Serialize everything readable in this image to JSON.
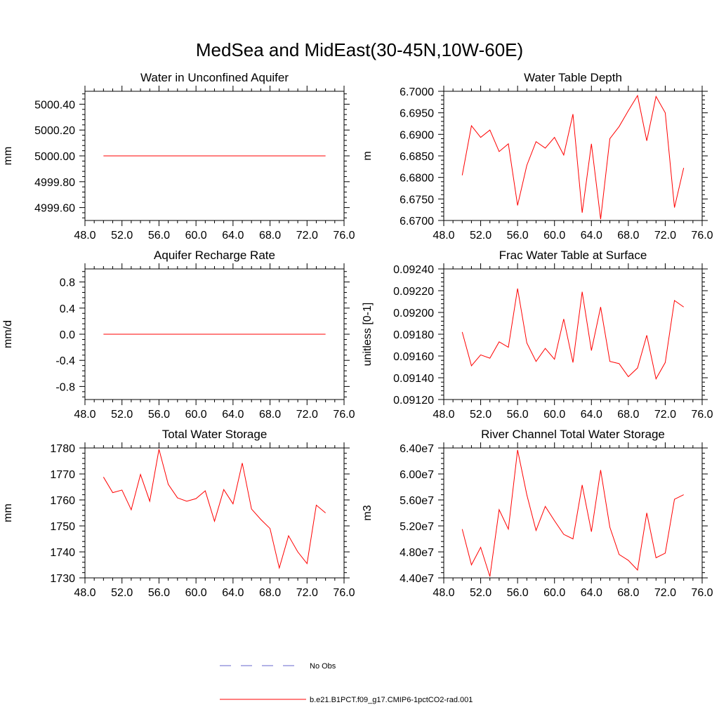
{
  "figure": {
    "title": "MedSea and MidEast(30-45N,10W-60E)"
  },
  "colors": {
    "model_line": "#ff0000",
    "obs_line": "#6666cc",
    "axis": "#000000",
    "background": "#ffffff"
  },
  "legend": {
    "items": [
      {
        "label": "No Obs",
        "style": "dashed",
        "color": "#6666cc"
      },
      {
        "label": "b.e21.B1PCT.f09_g17.CMIP6-1pctCO2-rad.001",
        "style": "solid",
        "color": "#ff0000"
      }
    ]
  },
  "chart_data": [
    {
      "type": "line",
      "title": "Water in Unconfined Aquifer",
      "xlabel": "",
      "ylabel": "mm",
      "xlim": [
        48,
        76
      ],
      "ylim": [
        4999.5,
        5000.5
      ],
      "xticks": [
        48,
        52,
        56,
        60,
        64,
        68,
        72,
        76
      ],
      "xtick_labels": [
        "48.0",
        "52.0",
        "56.0",
        "60.0",
        "64.0",
        "68.0",
        "72.0",
        "76.0"
      ],
      "yticks": [
        4999.6,
        4999.8,
        5000.0,
        5000.2,
        5000.4
      ],
      "ytick_labels": [
        "4999.60",
        "4999.80",
        "5000.00",
        "5000.20",
        "5000.40"
      ],
      "x": [
        50,
        51,
        52,
        53,
        54,
        55,
        56,
        57,
        58,
        59,
        60,
        61,
        62,
        63,
        64,
        65,
        66,
        67,
        68,
        69,
        70,
        71,
        72,
        73,
        74
      ],
      "series": [
        {
          "values": [
            5000.0,
            5000.0,
            5000.0,
            5000.0,
            5000.0,
            5000.0,
            5000.0,
            5000.0,
            5000.0,
            5000.0,
            5000.0,
            5000.0,
            5000.0,
            5000.0,
            5000.0,
            5000.0,
            5000.0,
            5000.0,
            5000.0,
            5000.0,
            5000.0,
            5000.0,
            5000.0,
            5000.0,
            5000.0
          ]
        }
      ]
    },
    {
      "type": "line",
      "title": "Water Table Depth",
      "xlabel": "",
      "ylabel": "m",
      "xlim": [
        48,
        76
      ],
      "ylim": [
        6.67,
        6.7
      ],
      "xticks": [
        48,
        52,
        56,
        60,
        64,
        68,
        72,
        76
      ],
      "xtick_labels": [
        "48.0",
        "52.0",
        "56.0",
        "60.0",
        "64.0",
        "68.0",
        "72.0",
        "76.0"
      ],
      "yticks": [
        6.67,
        6.675,
        6.68,
        6.685,
        6.69,
        6.695,
        6.7
      ],
      "ytick_labels": [
        "6.6700",
        "6.6750",
        "6.6800",
        "6.6850",
        "6.6900",
        "6.6950",
        "6.7000"
      ],
      "x": [
        50,
        51,
        52,
        53,
        54,
        55,
        56,
        57,
        58,
        59,
        60,
        61,
        62,
        63,
        64,
        65,
        66,
        67,
        68,
        69,
        70,
        71,
        72,
        73,
        74
      ],
      "series": [
        {
          "values": [
            6.6805,
            6.692,
            6.6893,
            6.691,
            6.686,
            6.6878,
            6.6735,
            6.6828,
            6.6883,
            6.6868,
            6.6893,
            6.6852,
            6.6947,
            6.6718,
            6.6878,
            6.6703,
            6.689,
            6.6918,
            6.6955,
            6.699,
            6.6885,
            6.6988,
            6.695,
            6.673,
            6.6822
          ]
        }
      ]
    },
    {
      "type": "line",
      "title": "Aquifer Recharge Rate",
      "xlabel": "",
      "ylabel": "mm/d",
      "xlim": [
        48,
        76
      ],
      "ylim": [
        -1.0,
        1.0
      ],
      "xticks": [
        48,
        52,
        56,
        60,
        64,
        68,
        72,
        76
      ],
      "xtick_labels": [
        "48.0",
        "52.0",
        "56.0",
        "60.0",
        "64.0",
        "68.0",
        "72.0",
        "76.0"
      ],
      "yticks": [
        -0.8,
        -0.4,
        0.0,
        0.4,
        0.8
      ],
      "ytick_labels": [
        "-0.8",
        "-0.4",
        "0.0",
        "0.4",
        "0.8"
      ],
      "x": [
        50,
        51,
        52,
        53,
        54,
        55,
        56,
        57,
        58,
        59,
        60,
        61,
        62,
        63,
        64,
        65,
        66,
        67,
        68,
        69,
        70,
        71,
        72,
        73,
        74
      ],
      "series": [
        {
          "values": [
            0,
            0,
            0,
            0,
            0,
            0,
            0,
            0,
            0,
            0,
            0,
            0,
            0,
            0,
            0,
            0,
            0,
            0,
            0,
            0,
            0,
            0,
            0,
            0,
            0
          ]
        }
      ]
    },
    {
      "type": "line",
      "title": "Frac Water Table at Surface",
      "xlabel": "",
      "ylabel": "unitless [0-1]",
      "xlim": [
        48,
        76
      ],
      "ylim": [
        0.0912,
        0.0924
      ],
      "xticks": [
        48,
        52,
        56,
        60,
        64,
        68,
        72,
        76
      ],
      "xtick_labels": [
        "48.0",
        "52.0",
        "56.0",
        "60.0",
        "64.0",
        "68.0",
        "72.0",
        "76.0"
      ],
      "yticks": [
        0.0912,
        0.0914,
        0.0916,
        0.0918,
        0.092,
        0.0922,
        0.0924
      ],
      "ytick_labels": [
        "0.09120",
        "0.09140",
        "0.09160",
        "0.09180",
        "0.09200",
        "0.09220",
        "0.09240"
      ],
      "x": [
        50,
        51,
        52,
        53,
        54,
        55,
        56,
        57,
        58,
        59,
        60,
        61,
        62,
        63,
        64,
        65,
        66,
        67,
        68,
        69,
        70,
        71,
        72,
        73,
        74
      ],
      "series": [
        {
          "values": [
            0.09182,
            0.09151,
            0.09161,
            0.09158,
            0.09173,
            0.09168,
            0.09222,
            0.09172,
            0.09155,
            0.09167,
            0.09157,
            0.09194,
            0.09154,
            0.09219,
            0.09165,
            0.09205,
            0.09155,
            0.09153,
            0.09141,
            0.09149,
            0.09179,
            0.09139,
            0.09154,
            0.09211,
            0.09205
          ]
        }
      ]
    },
    {
      "type": "line",
      "title": "Total Water Storage",
      "xlabel": "",
      "ylabel": "mm",
      "xlim": [
        48,
        76
      ],
      "ylim": [
        1730,
        1780
      ],
      "xticks": [
        48,
        52,
        56,
        60,
        64,
        68,
        72,
        76
      ],
      "xtick_labels": [
        "48.0",
        "52.0",
        "56.0",
        "60.0",
        "64.0",
        "68.0",
        "72.0",
        "76.0"
      ],
      "yticks": [
        1730,
        1740,
        1750,
        1760,
        1770,
        1780
      ],
      "ytick_labels": [
        "1730",
        "1740",
        "1750",
        "1760",
        "1770",
        "1780"
      ],
      "x": [
        50,
        51,
        52,
        53,
        54,
        55,
        56,
        57,
        58,
        59,
        60,
        61,
        62,
        63,
        64,
        65,
        66,
        67,
        68,
        69,
        70,
        71,
        72,
        73,
        74
      ],
      "series": [
        {
          "values": [
            1768.8,
            1762.8,
            1763.8,
            1756.2,
            1769.8,
            1759.5,
            1779.5,
            1766.0,
            1760.8,
            1759.5,
            1760.5,
            1763.5,
            1751.8,
            1764.0,
            1758.5,
            1774.2,
            1756.5,
            1752.5,
            1749.0,
            1733.8,
            1746.2,
            1740.0,
            1735.5,
            1758.0,
            1755.0
          ]
        }
      ]
    },
    {
      "type": "line",
      "title": "River Channel Total Water Storage",
      "xlabel": "",
      "ylabel": "m3",
      "xlim": [
        48,
        76
      ],
      "ylim": [
        44000000,
        64000000
      ],
      "xticks": [
        48,
        52,
        56,
        60,
        64,
        68,
        72,
        76
      ],
      "xtick_labels": [
        "48.0",
        "52.0",
        "56.0",
        "60.0",
        "64.0",
        "68.0",
        "72.0",
        "76.0"
      ],
      "yticks": [
        44000000,
        48000000,
        52000000,
        56000000,
        60000000,
        64000000
      ],
      "ytick_labels": [
        "4.40e7",
        "4.80e7",
        "5.20e7",
        "5.60e7",
        "6.00e7",
        "6.40e7"
      ],
      "x": [
        50,
        51,
        52,
        53,
        54,
        55,
        56,
        57,
        58,
        59,
        60,
        61,
        62,
        63,
        64,
        65,
        66,
        67,
        68,
        69,
        70,
        71,
        72,
        73,
        74
      ],
      "series": [
        {
          "values": [
            51500000,
            46000000,
            48700000,
            44200000,
            54500000,
            51500000,
            63700000,
            56800000,
            51300000,
            55000000,
            52800000,
            50700000,
            50000000,
            58300000,
            51100000,
            60600000,
            51800000,
            47600000,
            46700000,
            45200000,
            54000000,
            47100000,
            47800000,
            56100000,
            56800000
          ]
        }
      ]
    }
  ]
}
